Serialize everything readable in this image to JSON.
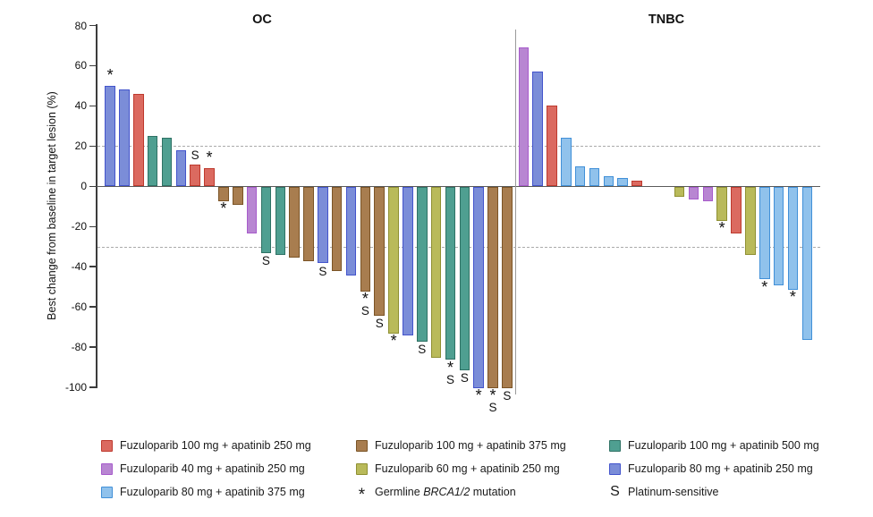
{
  "chart_data": {
    "type": "bar",
    "title": "",
    "xlabel": "",
    "ylabel": "Best change from baseline in target lesion (%)",
    "ylim": [
      -100,
      80
    ],
    "yticks": [
      80,
      60,
      40,
      20,
      0,
      -20,
      -40,
      -60,
      -80,
      -100
    ],
    "reference_lines": [
      20,
      -30
    ],
    "grid": "off",
    "legend_position": "bottom",
    "groups": {
      "fz100_ap250": {
        "label": "Fuzuloparib 100 mg + apatinib 250 mg",
        "fill": "#DB6A60",
        "border": "#BE3A2E"
      },
      "fz40_ap250": {
        "label": "Fuzuloparib 40 mg + apatinib 250 mg",
        "fill": "#B886D2",
        "border": "#A75BCB"
      },
      "fz80_ap375": {
        "label": "Fuzuloparib 80 mg + apatinib 375 mg",
        "fill": "#90C2EC",
        "border": "#4190D8"
      },
      "fz100_ap375": {
        "label": "Fuzuloparib 100 mg + apatinib 375 mg",
        "fill": "#A87D4F",
        "border": "#7B5426"
      },
      "fz60_ap250": {
        "label": "Fuzuloparib 60 mg + apatinib 250 mg",
        "fill": "#B9BA5A",
        "border": "#8F9032"
      },
      "fz100_ap500": {
        "label": "Fuzuloparib 100 mg + apatinib 500 mg",
        "fill": "#4F9F91",
        "border": "#2F7265"
      },
      "fz80_ap250": {
        "label": "Fuzuloparib 80 mg + apatinib 250 mg",
        "fill": "#7B8DD8",
        "border": "#4354CC"
      }
    },
    "panels": [
      {
        "title": "OC",
        "bars": [
          {
            "value": 50,
            "group": "fz80_ap250",
            "mark": "*"
          },
          {
            "value": 48,
            "group": "fz80_ap250",
            "mark": ""
          },
          {
            "value": 46,
            "group": "fz100_ap250",
            "mark": ""
          },
          {
            "value": 25,
            "group": "fz100_ap500",
            "mark": ""
          },
          {
            "value": 24,
            "group": "fz100_ap500",
            "mark": ""
          },
          {
            "value": 18,
            "group": "fz80_ap250",
            "mark": ""
          },
          {
            "value": 11,
            "group": "fz100_ap250",
            "mark": "S"
          },
          {
            "value": 9,
            "group": "fz100_ap250",
            "mark": "*"
          },
          {
            "value": -7,
            "group": "fz100_ap375",
            "mark": "*"
          },
          {
            "value": -9,
            "group": "fz100_ap375",
            "mark": ""
          },
          {
            "value": -23,
            "group": "fz40_ap250",
            "mark": ""
          },
          {
            "value": -33,
            "group": "fz100_ap500",
            "mark": "S"
          },
          {
            "value": -34,
            "group": "fz100_ap500",
            "mark": ""
          },
          {
            "value": -35,
            "group": "fz100_ap375",
            "mark": ""
          },
          {
            "value": -37,
            "group": "fz100_ap375",
            "mark": ""
          },
          {
            "value": -38,
            "group": "fz80_ap250",
            "mark": "S"
          },
          {
            "value": -42,
            "group": "fz100_ap375",
            "mark": ""
          },
          {
            "value": -44,
            "group": "fz80_ap250",
            "mark": ""
          },
          {
            "value": -52,
            "group": "fz100_ap375",
            "mark": "*S"
          },
          {
            "value": -64,
            "group": "fz100_ap375",
            "mark": "S"
          },
          {
            "value": -73,
            "group": "fz60_ap250",
            "mark": "*"
          },
          {
            "value": -74,
            "group": "fz80_ap250",
            "mark": ""
          },
          {
            "value": -77,
            "group": "fz100_ap500",
            "mark": "S"
          },
          {
            "value": -85,
            "group": "fz60_ap250",
            "mark": ""
          },
          {
            "value": -86,
            "group": "fz100_ap500",
            "mark": "*S"
          },
          {
            "value": -91,
            "group": "fz100_ap500",
            "mark": "S"
          },
          {
            "value": -100,
            "group": "fz80_ap250",
            "mark": "*"
          },
          {
            "value": -100,
            "group": "fz100_ap375",
            "mark": "*S"
          },
          {
            "value": -100,
            "group": "fz100_ap375",
            "mark": "S"
          }
        ]
      },
      {
        "title": "TNBC",
        "bars": [
          {
            "value": 69,
            "group": "fz40_ap250",
            "mark": ""
          },
          {
            "value": 57,
            "group": "fz80_ap250",
            "mark": ""
          },
          {
            "value": 40,
            "group": "fz100_ap250",
            "mark": ""
          },
          {
            "value": 24,
            "group": "fz80_ap375",
            "mark": ""
          },
          {
            "value": 10,
            "group": "fz80_ap375",
            "mark": ""
          },
          {
            "value": 9,
            "group": "fz80_ap375",
            "mark": ""
          },
          {
            "value": 5,
            "group": "fz80_ap375",
            "mark": ""
          },
          {
            "value": 4,
            "group": "fz80_ap375",
            "mark": ""
          },
          {
            "value": 3,
            "group": "fz100_ap250",
            "mark": ""
          },
          {
            "value": 0,
            "group": null,
            "mark": ""
          },
          {
            "value": 0,
            "group": null,
            "mark": ""
          },
          {
            "value": -5,
            "group": "fz60_ap250",
            "mark": ""
          },
          {
            "value": -6,
            "group": "fz40_ap250",
            "mark": ""
          },
          {
            "value": -7,
            "group": "fz40_ap250",
            "mark": ""
          },
          {
            "value": -17,
            "group": "fz60_ap250",
            "mark": "*"
          },
          {
            "value": -23,
            "group": "fz100_ap250",
            "mark": ""
          },
          {
            "value": -34,
            "group": "fz60_ap250",
            "mark": ""
          },
          {
            "value": -46,
            "group": "fz80_ap375",
            "mark": "*"
          },
          {
            "value": -49,
            "group": "fz80_ap375",
            "mark": ""
          },
          {
            "value": -51,
            "group": "fz80_ap375",
            "mark": "*"
          },
          {
            "value": -76,
            "group": "fz80_ap375",
            "mark": ""
          }
        ]
      }
    ]
  },
  "legend": {
    "columns": [
      {
        "items": [
          {
            "type": "swatch",
            "group": "fz100_ap250"
          },
          {
            "type": "swatch",
            "group": "fz40_ap250"
          },
          {
            "type": "swatch",
            "group": "fz80_ap375"
          }
        ]
      },
      {
        "items": [
          {
            "type": "swatch",
            "group": "fz100_ap375"
          },
          {
            "type": "swatch",
            "group": "fz60_ap250"
          },
          {
            "type": "marker",
            "symbol": "*",
            "prefix": "Germline ",
            "italic": "BRCA1/2",
            "suffix": " mutation"
          }
        ]
      },
      {
        "items": [
          {
            "type": "swatch",
            "group": "fz100_ap500"
          },
          {
            "type": "swatch",
            "group": "fz80_ap250"
          },
          {
            "type": "marker",
            "symbol": "S",
            "prefix": "Platinum-sensitive",
            "italic": "",
            "suffix": ""
          }
        ]
      }
    ]
  }
}
